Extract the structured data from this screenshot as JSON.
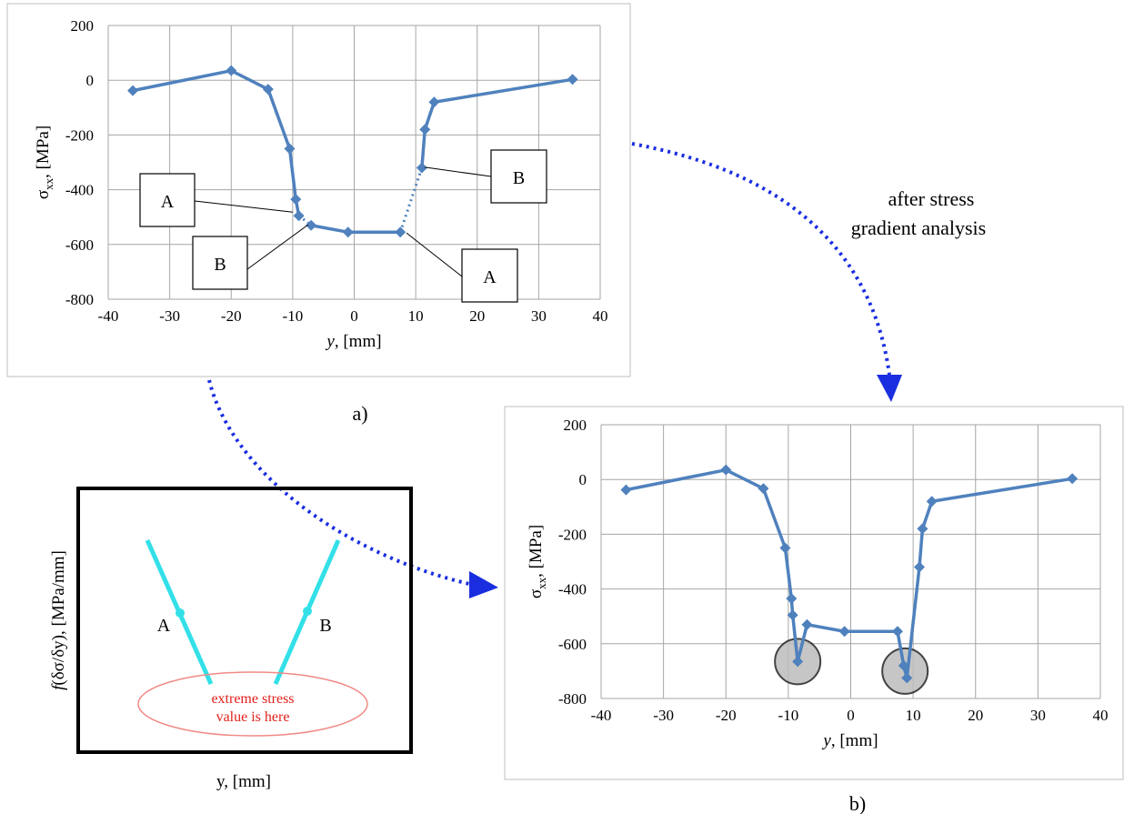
{
  "chart_data": [
    {
      "type": "line",
      "panel": "a)",
      "xlabel_italic": "y",
      "xlabel_rest": ", [mm]",
      "ylabel_sym": "σ",
      "ylabel_sub": "xx",
      "ylabel_rest": ",  [MPa]",
      "xlim": [
        -40,
        40
      ],
      "ylim": [
        -800,
        200
      ],
      "xticks": [
        "-40",
        "-30",
        "-20",
        "-10",
        "0",
        "10",
        "20",
        "30",
        "40"
      ],
      "yticks": [
        "200",
        "0",
        "-200",
        "-400",
        "-600",
        "-800"
      ],
      "grid": true,
      "series": [
        {
          "style": "solid",
          "x": [
            -36,
            -20,
            -14,
            -10.5,
            -9.5,
            -9.0
          ],
          "y": [
            -38,
            35,
            -33,
            -250,
            -435,
            -495
          ]
        },
        {
          "style": "solid",
          "x": [
            -7,
            -1,
            7.5
          ],
          "y": [
            -530,
            -555,
            -555
          ]
        },
        {
          "style": "solid",
          "x": [
            11,
            11.5,
            13,
            35.5
          ],
          "y": [
            -320,
            -180,
            -80,
            3
          ]
        },
        {
          "style": "dotted",
          "x": [
            -9.0,
            -7
          ],
          "y": [
            -495,
            -530
          ]
        },
        {
          "style": "dotted",
          "x": [
            7.5,
            11
          ],
          "y": [
            -555,
            -320
          ]
        }
      ],
      "annotations": [
        "A",
        "B",
        "B",
        "A"
      ]
    },
    {
      "type": "line",
      "panel": "b)",
      "xlabel_italic": "y",
      "xlabel_rest": ", [mm]",
      "ylabel_sym": "σ",
      "ylabel_sub": "xx",
      "ylabel_rest": ",  [MPa]",
      "xlim": [
        -40,
        40
      ],
      "ylim": [
        -800,
        200
      ],
      "xticks": [
        "-40",
        "-30",
        "-20",
        "-10",
        "0",
        "10",
        "20",
        "30",
        "40"
      ],
      "yticks": [
        "200",
        "0",
        "-200",
        "-400",
        "-600",
        "-800"
      ],
      "grid": true,
      "series": [
        {
          "style": "solid",
          "x": [
            -36,
            -20,
            -14,
            -10.5,
            -9.5,
            -9.3,
            -8.5,
            -7,
            -1,
            7.5,
            8.5,
            9,
            11,
            11.5,
            13,
            35.5
          ],
          "y": [
            -38,
            35,
            -33,
            -250,
            -435,
            -495,
            -665,
            -530,
            -555,
            -555,
            -680,
            -725,
            -320,
            -180,
            -80,
            3
          ]
        }
      ],
      "highlight_points": [
        [
          -8.5,
          -665
        ],
        [
          8.7,
          -700
        ]
      ]
    },
    {
      "type": "line",
      "panel": "inset",
      "xlabel": "y, [mm]",
      "ylabel_f": "f",
      "ylabel_rest": "(δσ/δy), [MPa/mm]",
      "lines": [
        "A",
        "B"
      ],
      "note_line1": "extreme stress",
      "note_line2": "value is here"
    }
  ],
  "arrow_text_line1": "after stress",
  "arrow_text_line2": "gradient analysis",
  "colors": {
    "series": "#4f81bd",
    "grid": "#a6a6a6",
    "inset_line": "#33e0e8",
    "arrow": "#1a2ee0",
    "note": "#e0201a"
  }
}
